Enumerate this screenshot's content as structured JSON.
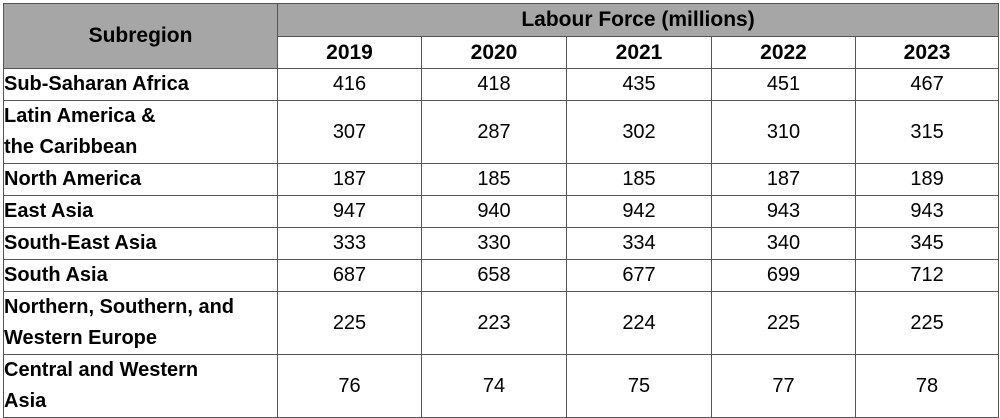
{
  "table": {
    "subregion_header": "Subregion",
    "group_header": "Labour Force (millions)",
    "years": [
      "2019",
      "2020",
      "2021",
      "2022",
      "2023"
    ],
    "rows": [
      {
        "region": "Sub-Saharan Africa",
        "values": [
          "416",
          "418",
          "435",
          "451",
          "467"
        ]
      },
      {
        "region": "Latin America &\nthe Caribbean",
        "values": [
          "307",
          "287",
          "302",
          "310",
          "315"
        ]
      },
      {
        "region": "North America",
        "values": [
          "187",
          "185",
          "185",
          "187",
          "189"
        ]
      },
      {
        "region": "East Asia",
        "values": [
          "947",
          "940",
          "942",
          "943",
          "943"
        ]
      },
      {
        "region": "South-East Asia",
        "values": [
          "333",
          "330",
          "334",
          "340",
          "345"
        ]
      },
      {
        "region": "South Asia",
        "values": [
          "687",
          "658",
          "677",
          "699",
          "712"
        ]
      },
      {
        "region": "Northern, Southern, and\nWestern Europe",
        "values": [
          "225",
          "223",
          "224",
          "225",
          "225"
        ]
      },
      {
        "region": "Central and Western\nAsia",
        "values": [
          "76",
          "74",
          "75",
          "77",
          "78"
        ]
      }
    ]
  },
  "colors": {
    "header_fill": "#a6a6a6",
    "border": "#555555"
  }
}
